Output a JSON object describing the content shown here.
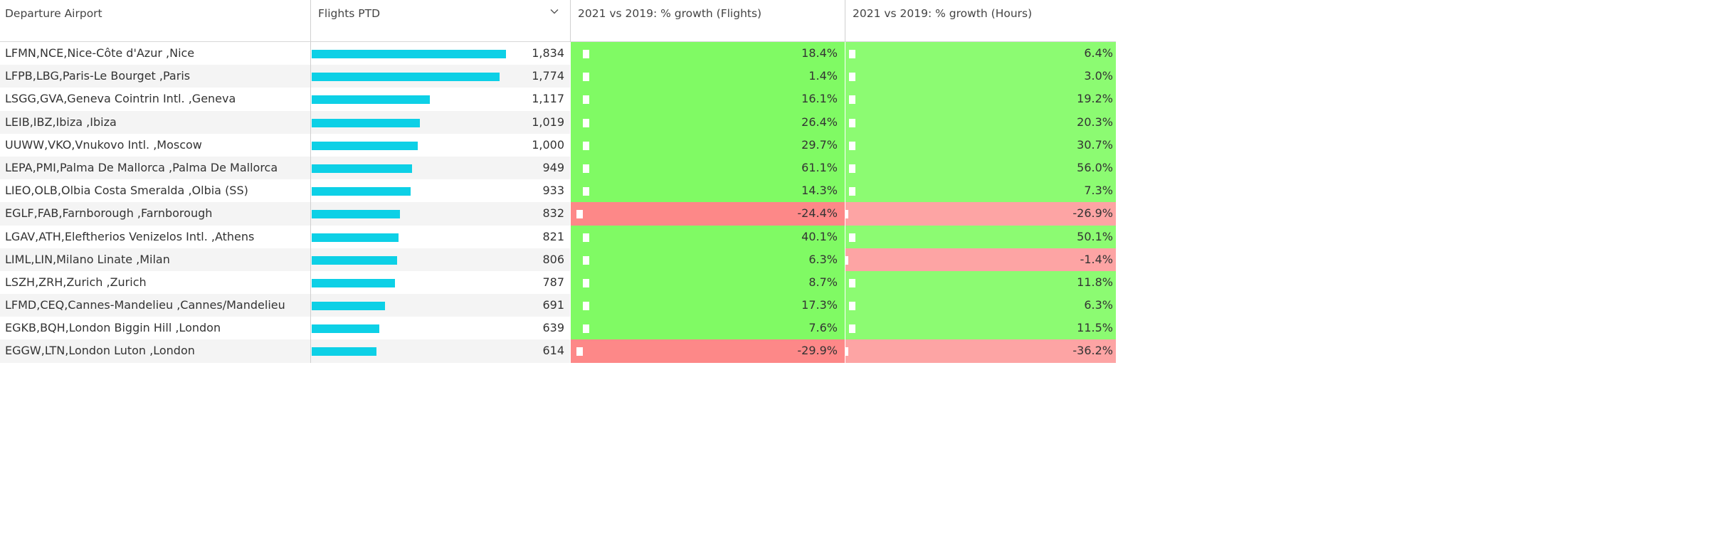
{
  "columns": {
    "airport": "Departure Airport",
    "flights": "Flights PTD",
    "growth_flights": "2021 vs 2019: % growth (Flights)",
    "growth_hours": "2021 vs 2019: % growth (Hours)"
  },
  "icons": {
    "sort": "chevron-down-icon"
  },
  "colors": {
    "bar": "#0dd0e6",
    "pos_flights": "#80fa64",
    "neg_flights": "#fd8888",
    "pos_hours": "#8cfb72",
    "neg_hours": "#fda4a4"
  },
  "max_flights": 1834,
  "rows": [
    {
      "airport": "LFMN,NCE,Nice-Côte d'Azur ,Nice",
      "flights": 1834,
      "flights_label": "1,834",
      "growth_flights": "18.4%",
      "growth_hours": "6.4%",
      "fneg": false,
      "hneg": false
    },
    {
      "airport": "LFPB,LBG,Paris-Le Bourget ,Paris",
      "flights": 1774,
      "flights_label": "1,774",
      "growth_flights": "1.4%",
      "growth_hours": "3.0%",
      "fneg": false,
      "hneg": false
    },
    {
      "airport": "LSGG,GVA,Geneva Cointrin Intl. ,Geneva",
      "flights": 1117,
      "flights_label": "1,117",
      "growth_flights": "16.1%",
      "growth_hours": "19.2%",
      "fneg": false,
      "hneg": false
    },
    {
      "airport": "LEIB,IBZ,Ibiza ,Ibiza",
      "flights": 1019,
      "flights_label": "1,019",
      "growth_flights": "26.4%",
      "growth_hours": "20.3%",
      "fneg": false,
      "hneg": false
    },
    {
      "airport": "UUWW,VKO,Vnukovo Intl. ,Moscow",
      "flights": 1000,
      "flights_label": "1,000",
      "growth_flights": "29.7%",
      "growth_hours": "30.7%",
      "fneg": false,
      "hneg": false
    },
    {
      "airport": "LEPA,PMI,Palma De Mallorca ,Palma De Mallorca",
      "flights": 949,
      "flights_label": "949",
      "growth_flights": "61.1%",
      "growth_hours": "56.0%",
      "fneg": false,
      "hneg": false
    },
    {
      "airport": "LIEO,OLB,Olbia Costa Smeralda ,Olbia (SS)",
      "flights": 933,
      "flights_label": "933",
      "growth_flights": "14.3%",
      "growth_hours": "7.3%",
      "fneg": false,
      "hneg": false
    },
    {
      "airport": "EGLF,FAB,Farnborough ,Farnborough",
      "flights": 832,
      "flights_label": "832",
      "growth_flights": "-24.4%",
      "growth_hours": "-26.9%",
      "fneg": true,
      "hneg": true
    },
    {
      "airport": "LGAV,ATH,Eleftherios Venizelos Intl. ,Athens",
      "flights": 821,
      "flights_label": "821",
      "growth_flights": "40.1%",
      "growth_hours": "50.1%",
      "fneg": false,
      "hneg": false
    },
    {
      "airport": "LIML,LIN,Milano Linate ,Milan",
      "flights": 806,
      "flights_label": "806",
      "growth_flights": "6.3%",
      "growth_hours": "-1.4%",
      "fneg": false,
      "hneg": true
    },
    {
      "airport": "LSZH,ZRH,Zurich ,Zurich",
      "flights": 787,
      "flights_label": "787",
      "growth_flights": "8.7%",
      "growth_hours": "11.8%",
      "fneg": false,
      "hneg": false
    },
    {
      "airport": "LFMD,CEQ,Cannes-Mandelieu ,Cannes/Mandelieu",
      "flights": 691,
      "flights_label": "691",
      "growth_flights": "17.3%",
      "growth_hours": "6.3%",
      "fneg": false,
      "hneg": false
    },
    {
      "airport": "EGKB,BQH,London Biggin Hill ,London",
      "flights": 639,
      "flights_label": "639",
      "growth_flights": "7.6%",
      "growth_hours": "11.5%",
      "fneg": false,
      "hneg": false
    },
    {
      "airport": "EGGW,LTN,London Luton ,London",
      "flights": 614,
      "flights_label": "614",
      "growth_flights": "-29.9%",
      "growth_hours": "-36.2%",
      "fneg": true,
      "hneg": true
    }
  ]
}
